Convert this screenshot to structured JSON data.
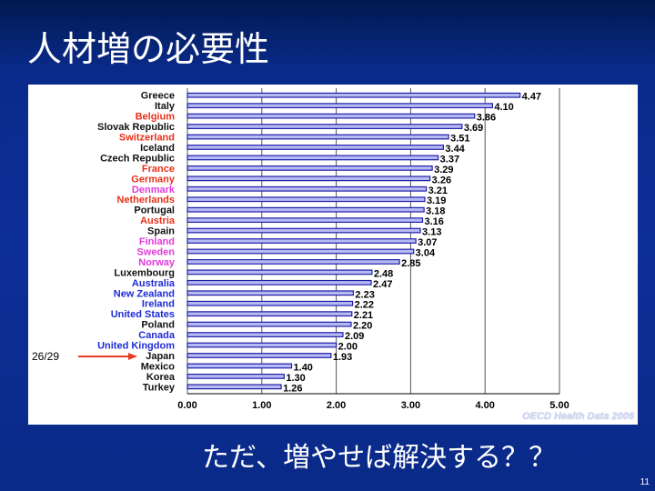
{
  "slide": {
    "title": "人材増の必要性",
    "caption": "ただ、増やせば解決する？？",
    "page_number": "11"
  },
  "annotation": {
    "rank_label": "26/29",
    "arrow_color": "#e83a20",
    "target": "Japan"
  },
  "source_note": "OECD Health Data 2006",
  "colors": {
    "bar_fill": "#b7b9f3",
    "bar_stroke": "#1f1fa8",
    "label_black": "#111111",
    "label_red": "#e8311a",
    "label_magenta": "#e23ad9",
    "label_blue": "#1d2bd6",
    "grid": "#555555"
  },
  "chart_data": {
    "type": "bar",
    "orientation": "horizontal",
    "categories": [
      "Greece",
      "Italy",
      "Belgium",
      "Slovak Republic",
      "Switzerland",
      "Iceland",
      "Czech Republic",
      "France",
      "Germany",
      "Denmark",
      "Netherlands",
      "Portugal",
      "Austria",
      "Spain",
      "Finland",
      "Sweden",
      "Norway",
      "Luxembourg",
      "Australia",
      "New Zealand",
      "Ireland",
      "United States",
      "Poland",
      "Canada",
      "United Kingdom",
      "Japan",
      "Mexico",
      "Korea",
      "Turkey"
    ],
    "values": [
      4.47,
      4.1,
      3.86,
      3.69,
      3.51,
      3.44,
      3.37,
      3.29,
      3.26,
      3.21,
      3.19,
      3.18,
      3.16,
      3.13,
      3.07,
      3.04,
      2.85,
      2.48,
      2.47,
      2.23,
      2.22,
      2.21,
      2.2,
      2.09,
      2.0,
      1.93,
      1.4,
      1.3,
      1.26
    ],
    "value_labels": [
      "4.47",
      "4.10",
      "3.86",
      "3.69",
      "3.51",
      "3.44",
      "3.37",
      "3.29",
      "3.26",
      "3.21",
      "3.19",
      "3.18",
      "3.16",
      "3.13",
      "3.07",
      "3.04",
      "2.85",
      "2.48",
      "2.47",
      "2.23",
      "2.22",
      "2.21",
      "2.20",
      "2.09",
      "2.00",
      "1.93",
      "1.40",
      "1.30",
      "1.26"
    ],
    "label_colors": [
      "black",
      "black",
      "red",
      "black",
      "red",
      "black",
      "black",
      "red",
      "red",
      "magenta",
      "red",
      "black",
      "red",
      "black",
      "magenta",
      "magenta",
      "magenta",
      "black",
      "blue",
      "blue",
      "blue",
      "blue",
      "black",
      "blue",
      "blue",
      "black",
      "black",
      "black",
      "black"
    ],
    "xlim": [
      0,
      5
    ],
    "xticks": [
      "0.00",
      "1.00",
      "2.00",
      "3.00",
      "4.00",
      "5.00"
    ],
    "grid": true,
    "title": "",
    "xlabel": "",
    "ylabel": ""
  }
}
